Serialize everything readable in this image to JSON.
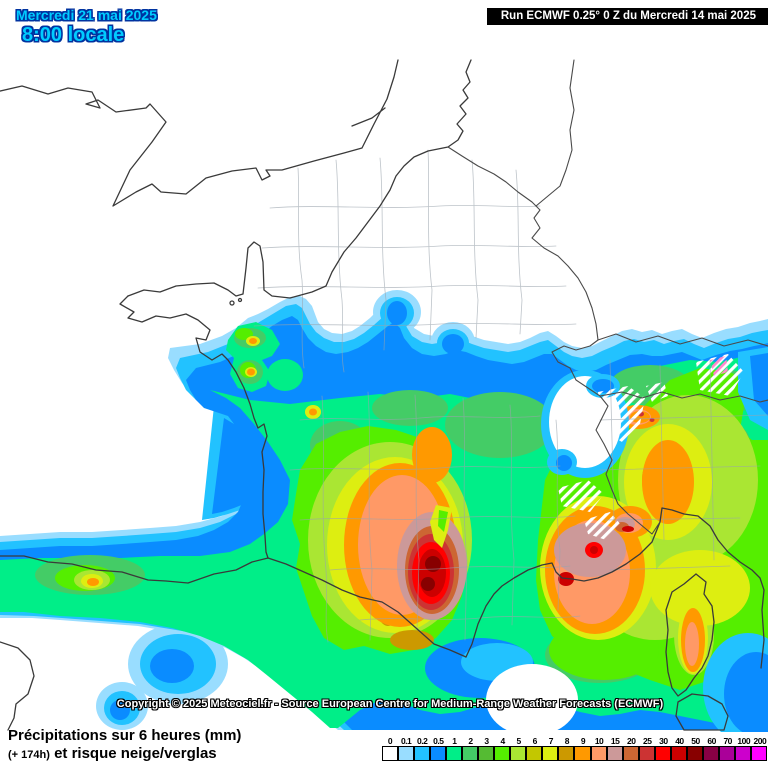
{
  "header": {
    "date_label": "Mercredi 21 mai 2025",
    "time_label": "8:00 locale",
    "run_label": "Run ECMWF 0.25° 0 Z du Mercredi 14 mai 2025"
  },
  "map": {
    "copyright": "Copyright © 2025 Meteociel.fr - Source European Centre for Medium-Range Weather Forecasts (ECMWF)",
    "region": "France",
    "overlays": [
      "precipitation-shading",
      "snow-risk-hatching",
      "coastlines",
      "country-borders",
      "department-borders"
    ]
  },
  "footer": {
    "title": "Précipitations sur 6 heures (mm)",
    "subtitle_prefix": "(+ 174h)",
    "subtitle": "et risque neige/verglas"
  },
  "legend": {
    "unit": "mm",
    "stops": [
      {
        "value": "0",
        "color": "#FFFFFF"
      },
      {
        "value": "0.1",
        "color": "#99DDFF"
      },
      {
        "value": "0.2",
        "color": "#22C2FF"
      },
      {
        "value": "0.5",
        "color": "#0A8CFF"
      },
      {
        "value": "1",
        "color": "#00EE88"
      },
      {
        "value": "2",
        "color": "#44CC66"
      },
      {
        "value": "3",
        "color": "#55BB33"
      },
      {
        "value": "4",
        "color": "#55EE00"
      },
      {
        "value": "5",
        "color": "#AAE633"
      },
      {
        "value": "6",
        "color": "#C3C700"
      },
      {
        "value": "7",
        "color": "#DDEE11"
      },
      {
        "value": "8",
        "color": "#CC9900"
      },
      {
        "value": "9",
        "color": "#FF9900"
      },
      {
        "value": "10",
        "color": "#FF9966"
      },
      {
        "value": "15",
        "color": "#CC9999"
      },
      {
        "value": "20",
        "color": "#CC6633"
      },
      {
        "value": "25",
        "color": "#CC3333"
      },
      {
        "value": "30",
        "color": "#FF0000"
      },
      {
        "value": "40",
        "color": "#CC0000"
      },
      {
        "value": "50",
        "color": "#880000"
      },
      {
        "value": "60",
        "color": "#880044"
      },
      {
        "value": "70",
        "color": "#AA0099"
      },
      {
        "value": "100",
        "color": "#CC00CC"
      },
      {
        "value": "200",
        "color": "#FF00FF"
      }
    ]
  },
  "colors": {
    "date_text": "#00CCFF",
    "date_outline": "#0033A0",
    "run_bar_bg": "#000000",
    "run_bar_text": "#FFFFFF",
    "coastline": "#3A3A3A",
    "department_border": "#9AA4AD"
  }
}
